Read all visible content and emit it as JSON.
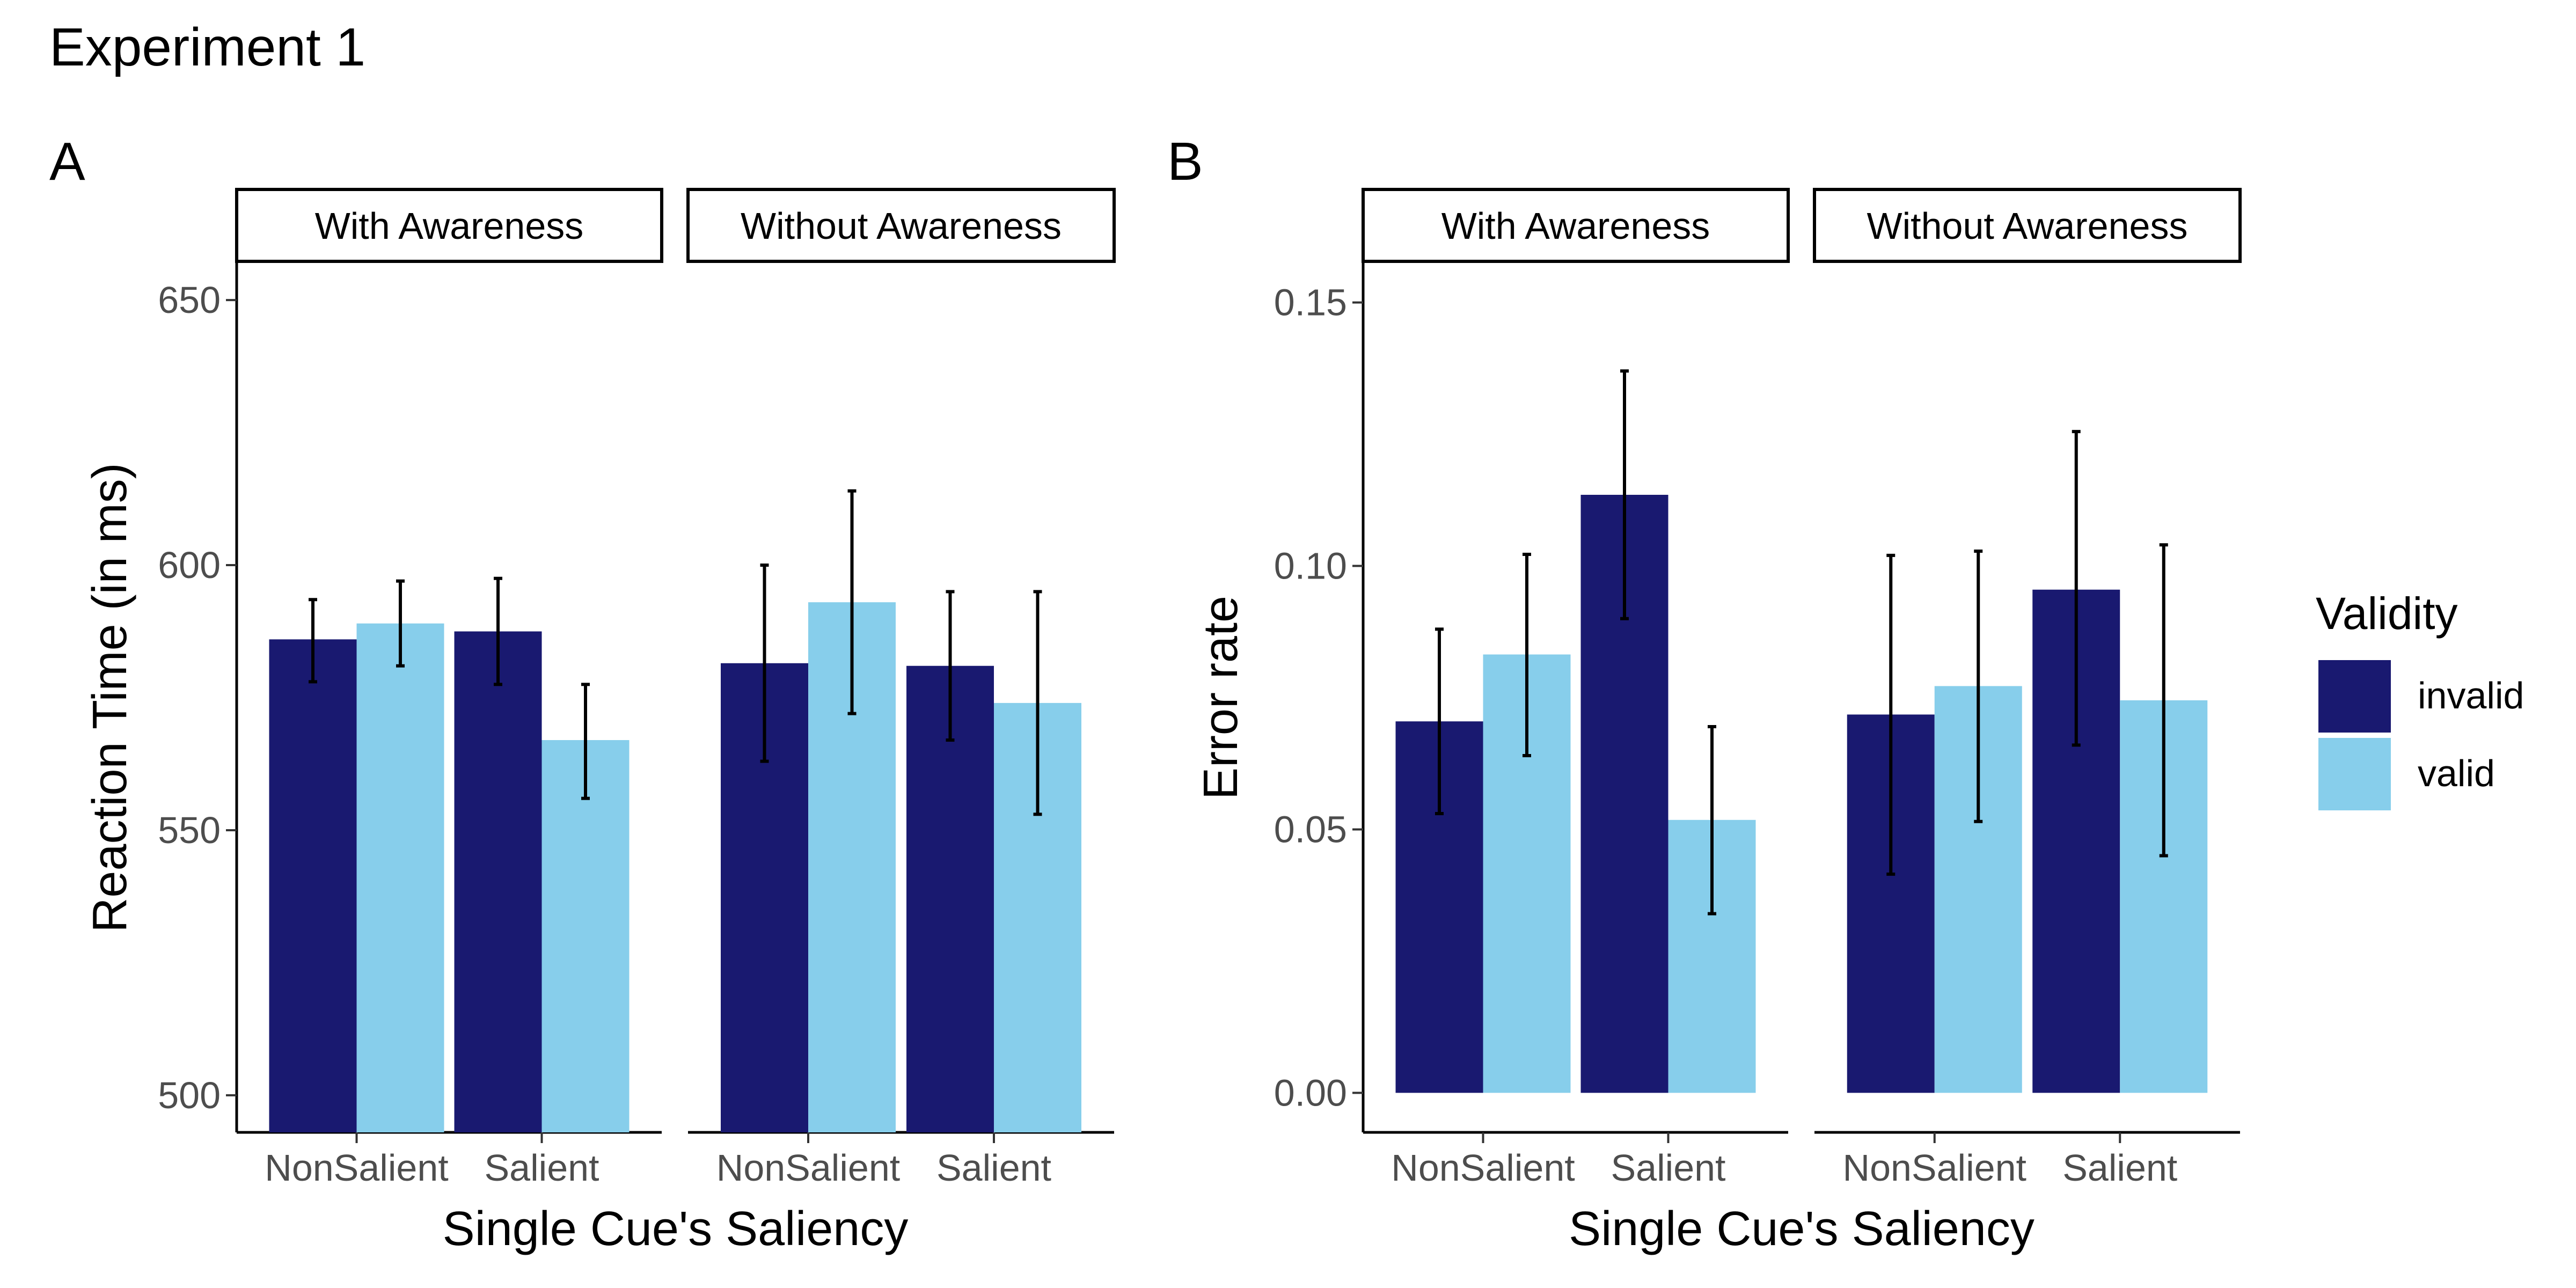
{
  "figure": {
    "title": "Experiment 1"
  },
  "colors": {
    "invalid": "#191970",
    "valid": "#87ceeb"
  },
  "legend": {
    "title": "Validity",
    "items": [
      {
        "key": "invalid",
        "label": "invalid",
        "color": "#191970"
      },
      {
        "key": "valid",
        "label": "valid",
        "color": "#87ceeb"
      }
    ]
  },
  "chart_data": [
    {
      "type": "bar",
      "tag": "A",
      "xlabel": "Single Cue's Saliency",
      "ylabel": "Reaction Time (in ms)",
      "ylim": [
        493,
        657
      ],
      "baseline": 493,
      "yticks": [
        {
          "value": 500,
          "label": "500"
        },
        {
          "value": 550,
          "label": "550"
        },
        {
          "value": 600,
          "label": "600"
        },
        {
          "value": 650,
          "label": "650"
        }
      ],
      "facets": [
        {
          "strip": "With Awareness",
          "categories": [
            "NonSalient",
            "Salient"
          ],
          "series": [
            {
              "name": "invalid",
              "values": [
                586,
                587.5
              ],
              "err_low": [
                578,
                577.5
              ],
              "err_high": [
                593.5,
                597.5
              ]
            },
            {
              "name": "valid",
              "values": [
                589,
                567
              ],
              "err_low": [
                581,
                556
              ],
              "err_high": [
                597,
                577.5
              ]
            }
          ]
        },
        {
          "strip": "Without Awareness",
          "categories": [
            "NonSalient",
            "Salient"
          ],
          "series": [
            {
              "name": "invalid",
              "values": [
                581.5,
                581
              ],
              "err_low": [
                563,
                567
              ],
              "err_high": [
                600,
                595
              ]
            },
            {
              "name": "valid",
              "values": [
                593,
                574
              ],
              "err_low": [
                572,
                553
              ],
              "err_high": [
                614,
                595
              ]
            }
          ]
        }
      ]
    },
    {
      "type": "bar",
      "tag": "B",
      "xlabel": "Single Cue's Saliency",
      "ylabel": "Error rate",
      "ylim": [
        -0.0075,
        0.1575
      ],
      "baseline": 0,
      "yticks": [
        {
          "value": 0,
          "label": "0.00"
        },
        {
          "value": 0.05,
          "label": "0.05"
        },
        {
          "value": 0.1,
          "label": "0.10"
        },
        {
          "value": 0.15,
          "label": "0.15"
        }
      ],
      "facets": [
        {
          "strip": "With Awareness",
          "categories": [
            "NonSalient",
            "Salient"
          ],
          "series": [
            {
              "name": "invalid",
              "values": [
                0.0705,
                0.1135
              ],
              "err_low": [
                0.053,
                0.09
              ],
              "err_high": [
                0.088,
                0.137
              ]
            },
            {
              "name": "valid",
              "values": [
                0.0832,
                0.0518
              ],
              "err_low": [
                0.064,
                0.034
              ],
              "err_high": [
                0.1022,
                0.0695
              ]
            }
          ]
        },
        {
          "strip": "Without Awareness",
          "categories": [
            "NonSalient",
            "Salient"
          ],
          "series": [
            {
              "name": "invalid",
              "values": [
                0.0718,
                0.0955
              ],
              "err_low": [
                0.0415,
                0.066
              ],
              "err_high": [
                0.102,
                0.1255
              ]
            },
            {
              "name": "valid",
              "values": [
                0.0772,
                0.0745
              ],
              "err_low": [
                0.0515,
                0.045
              ],
              "err_high": [
                0.1028,
                0.104
              ]
            }
          ]
        }
      ]
    }
  ]
}
